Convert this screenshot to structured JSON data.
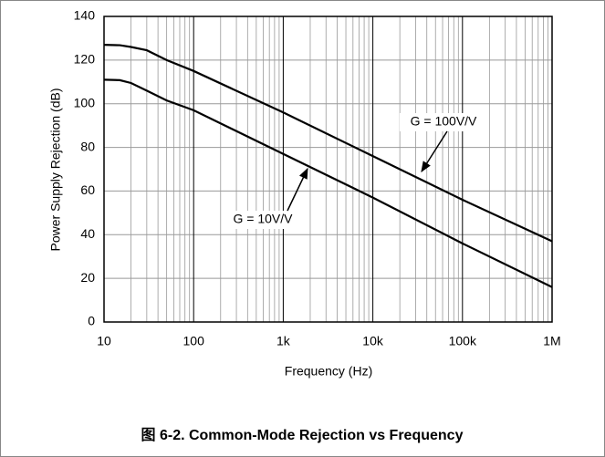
{
  "chart_data": {
    "type": "line",
    "caption": "图 6-2. Common-Mode Rejection vs Frequency",
    "x_label": "Frequency (Hz)",
    "y_label": "Power Supply Rejection (dB)",
    "x_scale": "log",
    "grid": true,
    "xlim": [
      10,
      1000000
    ],
    "xticks": [
      10,
      100,
      {
        "value": 1000,
        "label": "1k"
      },
      {
        "value": 10000,
        "label": "10k"
      },
      {
        "value": 100000,
        "label": "100k"
      },
      {
        "value": 1000000,
        "label": "1M"
      }
    ],
    "ylim": [
      0,
      140
    ],
    "yticks": [
      0,
      20,
      40,
      60,
      80,
      100,
      120,
      140
    ],
    "x": [
      10,
      15,
      20,
      30,
      50,
      100,
      1000,
      10000,
      100000,
      1000000
    ],
    "series": [
      {
        "name": "G = 100V/V",
        "color": "#000000",
        "values": [
          127,
          126.8,
          126,
          124.5,
          120,
          115,
          96,
          76,
          56,
          37
        ]
      },
      {
        "name": "G = 10V/V",
        "color": "#000000",
        "values": [
          111,
          110.8,
          109.5,
          106,
          101.5,
          97,
          77,
          57,
          36,
          16
        ]
      }
    ]
  }
}
